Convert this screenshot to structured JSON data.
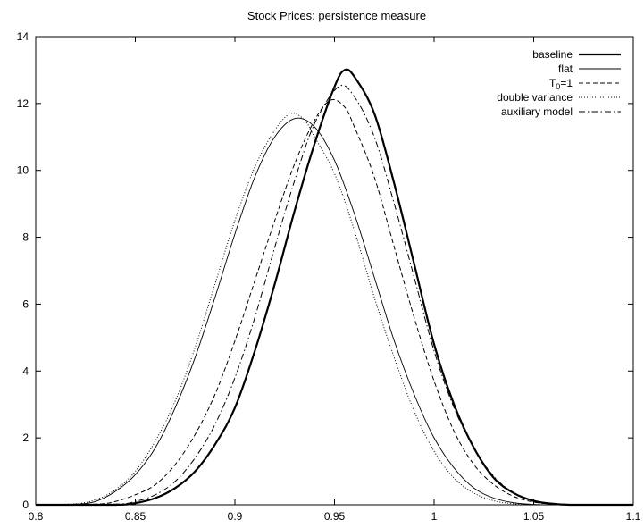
{
  "chart_data": {
    "type": "line",
    "title": "Stock Prices: persistence measure",
    "xlim": [
      0.8,
      1.1
    ],
    "ylim": [
      0,
      14
    ],
    "xticks": [
      0.8,
      0.85,
      0.9,
      0.95,
      1,
      1.05,
      1.1
    ],
    "xtick_labels": [
      "0.8",
      "0.85",
      "0.9",
      "0.95",
      "1",
      "1.05",
      "1.1"
    ],
    "yticks": [
      0,
      2,
      4,
      6,
      8,
      10,
      12,
      14
    ],
    "ytick_labels": [
      "0",
      "2",
      "4",
      "6",
      "8",
      "10",
      "12",
      "14"
    ],
    "grid": false,
    "legend_position": "top-right",
    "series": [
      {
        "name": "baseline",
        "style": "thick-solid",
        "points": [
          [
            0.8,
            0
          ],
          [
            0.84,
            0
          ],
          [
            0.85,
            0.05
          ],
          [
            0.86,
            0.2
          ],
          [
            0.87,
            0.5
          ],
          [
            0.88,
            1.0
          ],
          [
            0.89,
            1.8
          ],
          [
            0.9,
            2.9
          ],
          [
            0.91,
            4.6
          ],
          [
            0.92,
            6.6
          ],
          [
            0.93,
            8.8
          ],
          [
            0.94,
            10.8
          ],
          [
            0.95,
            12.5
          ],
          [
            0.955,
            13.0
          ],
          [
            0.96,
            12.8
          ],
          [
            0.97,
            11.7
          ],
          [
            0.98,
            9.6
          ],
          [
            0.99,
            7.2
          ],
          [
            1.0,
            4.8
          ],
          [
            1.01,
            3.0
          ],
          [
            1.02,
            1.7
          ],
          [
            1.03,
            0.8
          ],
          [
            1.04,
            0.35
          ],
          [
            1.05,
            0.12
          ],
          [
            1.06,
            0.03
          ],
          [
            1.07,
            0
          ],
          [
            1.1,
            0
          ]
        ]
      },
      {
        "name": "flat",
        "style": "thin-solid",
        "points": [
          [
            0.8,
            0
          ],
          [
            0.82,
            0.02
          ],
          [
            0.83,
            0.1
          ],
          [
            0.84,
            0.4
          ],
          [
            0.85,
            0.9
          ],
          [
            0.86,
            1.7
          ],
          [
            0.87,
            2.9
          ],
          [
            0.88,
            4.4
          ],
          [
            0.89,
            6.2
          ],
          [
            0.9,
            8.1
          ],
          [
            0.91,
            9.8
          ],
          [
            0.92,
            11.0
          ],
          [
            0.93,
            11.55
          ],
          [
            0.94,
            11.3
          ],
          [
            0.95,
            10.3
          ],
          [
            0.96,
            8.7
          ],
          [
            0.97,
            6.8
          ],
          [
            0.98,
            4.9
          ],
          [
            0.99,
            3.3
          ],
          [
            1.0,
            2.0
          ],
          [
            1.01,
            1.1
          ],
          [
            1.02,
            0.5
          ],
          [
            1.03,
            0.2
          ],
          [
            1.04,
            0.06
          ],
          [
            1.05,
            0.01
          ],
          [
            1.06,
            0
          ],
          [
            1.1,
            0
          ]
        ]
      },
      {
        "name": "T_0=1",
        "style": "dashed",
        "points": [
          [
            0.8,
            0
          ],
          [
            0.83,
            0.02
          ],
          [
            0.84,
            0.1
          ],
          [
            0.85,
            0.3
          ],
          [
            0.86,
            0.6
          ],
          [
            0.87,
            1.2
          ],
          [
            0.88,
            2.1
          ],
          [
            0.89,
            3.3
          ],
          [
            0.9,
            4.9
          ],
          [
            0.91,
            6.7
          ],
          [
            0.92,
            8.5
          ],
          [
            0.93,
            10.2
          ],
          [
            0.94,
            11.5
          ],
          [
            0.948,
            12.1
          ],
          [
            0.955,
            11.9
          ],
          [
            0.96,
            11.3
          ],
          [
            0.97,
            9.8
          ],
          [
            0.98,
            7.7
          ],
          [
            0.99,
            5.6
          ],
          [
            1.0,
            3.7
          ],
          [
            1.01,
            2.2
          ],
          [
            1.02,
            1.2
          ],
          [
            1.03,
            0.6
          ],
          [
            1.04,
            0.25
          ],
          [
            1.05,
            0.08
          ],
          [
            1.06,
            0.02
          ],
          [
            1.07,
            0
          ],
          [
            1.1,
            0
          ]
        ]
      },
      {
        "name": "double variance",
        "style": "dotted",
        "points": [
          [
            0.8,
            0
          ],
          [
            0.82,
            0.03
          ],
          [
            0.83,
            0.15
          ],
          [
            0.84,
            0.45
          ],
          [
            0.85,
            1.0
          ],
          [
            0.86,
            1.9
          ],
          [
            0.87,
            3.1
          ],
          [
            0.88,
            4.7
          ],
          [
            0.89,
            6.6
          ],
          [
            0.9,
            8.5
          ],
          [
            0.91,
            10.1
          ],
          [
            0.92,
            11.2
          ],
          [
            0.928,
            11.7
          ],
          [
            0.935,
            11.5
          ],
          [
            0.94,
            11.0
          ],
          [
            0.95,
            9.9
          ],
          [
            0.96,
            8.2
          ],
          [
            0.97,
            6.2
          ],
          [
            0.98,
            4.4
          ],
          [
            0.99,
            2.8
          ],
          [
            1.0,
            1.6
          ],
          [
            1.01,
            0.8
          ],
          [
            1.02,
            0.35
          ],
          [
            1.03,
            0.12
          ],
          [
            1.04,
            0.03
          ],
          [
            1.05,
            0
          ],
          [
            1.1,
            0
          ]
        ]
      },
      {
        "name": "auxiliary model",
        "style": "dash-dot",
        "points": [
          [
            0.8,
            0
          ],
          [
            0.84,
            0.02
          ],
          [
            0.85,
            0.1
          ],
          [
            0.86,
            0.3
          ],
          [
            0.87,
            0.7
          ],
          [
            0.88,
            1.4
          ],
          [
            0.89,
            2.4
          ],
          [
            0.9,
            3.8
          ],
          [
            0.91,
            5.6
          ],
          [
            0.92,
            7.7
          ],
          [
            0.93,
            9.7
          ],
          [
            0.94,
            11.4
          ],
          [
            0.952,
            12.5
          ],
          [
            0.96,
            12.2
          ],
          [
            0.97,
            11.0
          ],
          [
            0.98,
            9.0
          ],
          [
            0.99,
            6.8
          ],
          [
            1.0,
            4.6
          ],
          [
            1.01,
            2.9
          ],
          [
            1.02,
            1.7
          ],
          [
            1.03,
            0.85
          ],
          [
            1.04,
            0.35
          ],
          [
            1.05,
            0.1
          ],
          [
            1.06,
            0.02
          ],
          [
            1.07,
            0
          ],
          [
            1.1,
            0
          ]
        ]
      }
    ]
  },
  "legend": [
    {
      "text": "baseline",
      "sub": "",
      "rest": ""
    },
    {
      "text": "flat",
      "sub": "",
      "rest": ""
    },
    {
      "text": "T",
      "sub": "0",
      "rest": "=1"
    },
    {
      "text": "double variance",
      "sub": "",
      "rest": ""
    },
    {
      "text": "auxiliary model",
      "sub": "",
      "rest": ""
    }
  ]
}
